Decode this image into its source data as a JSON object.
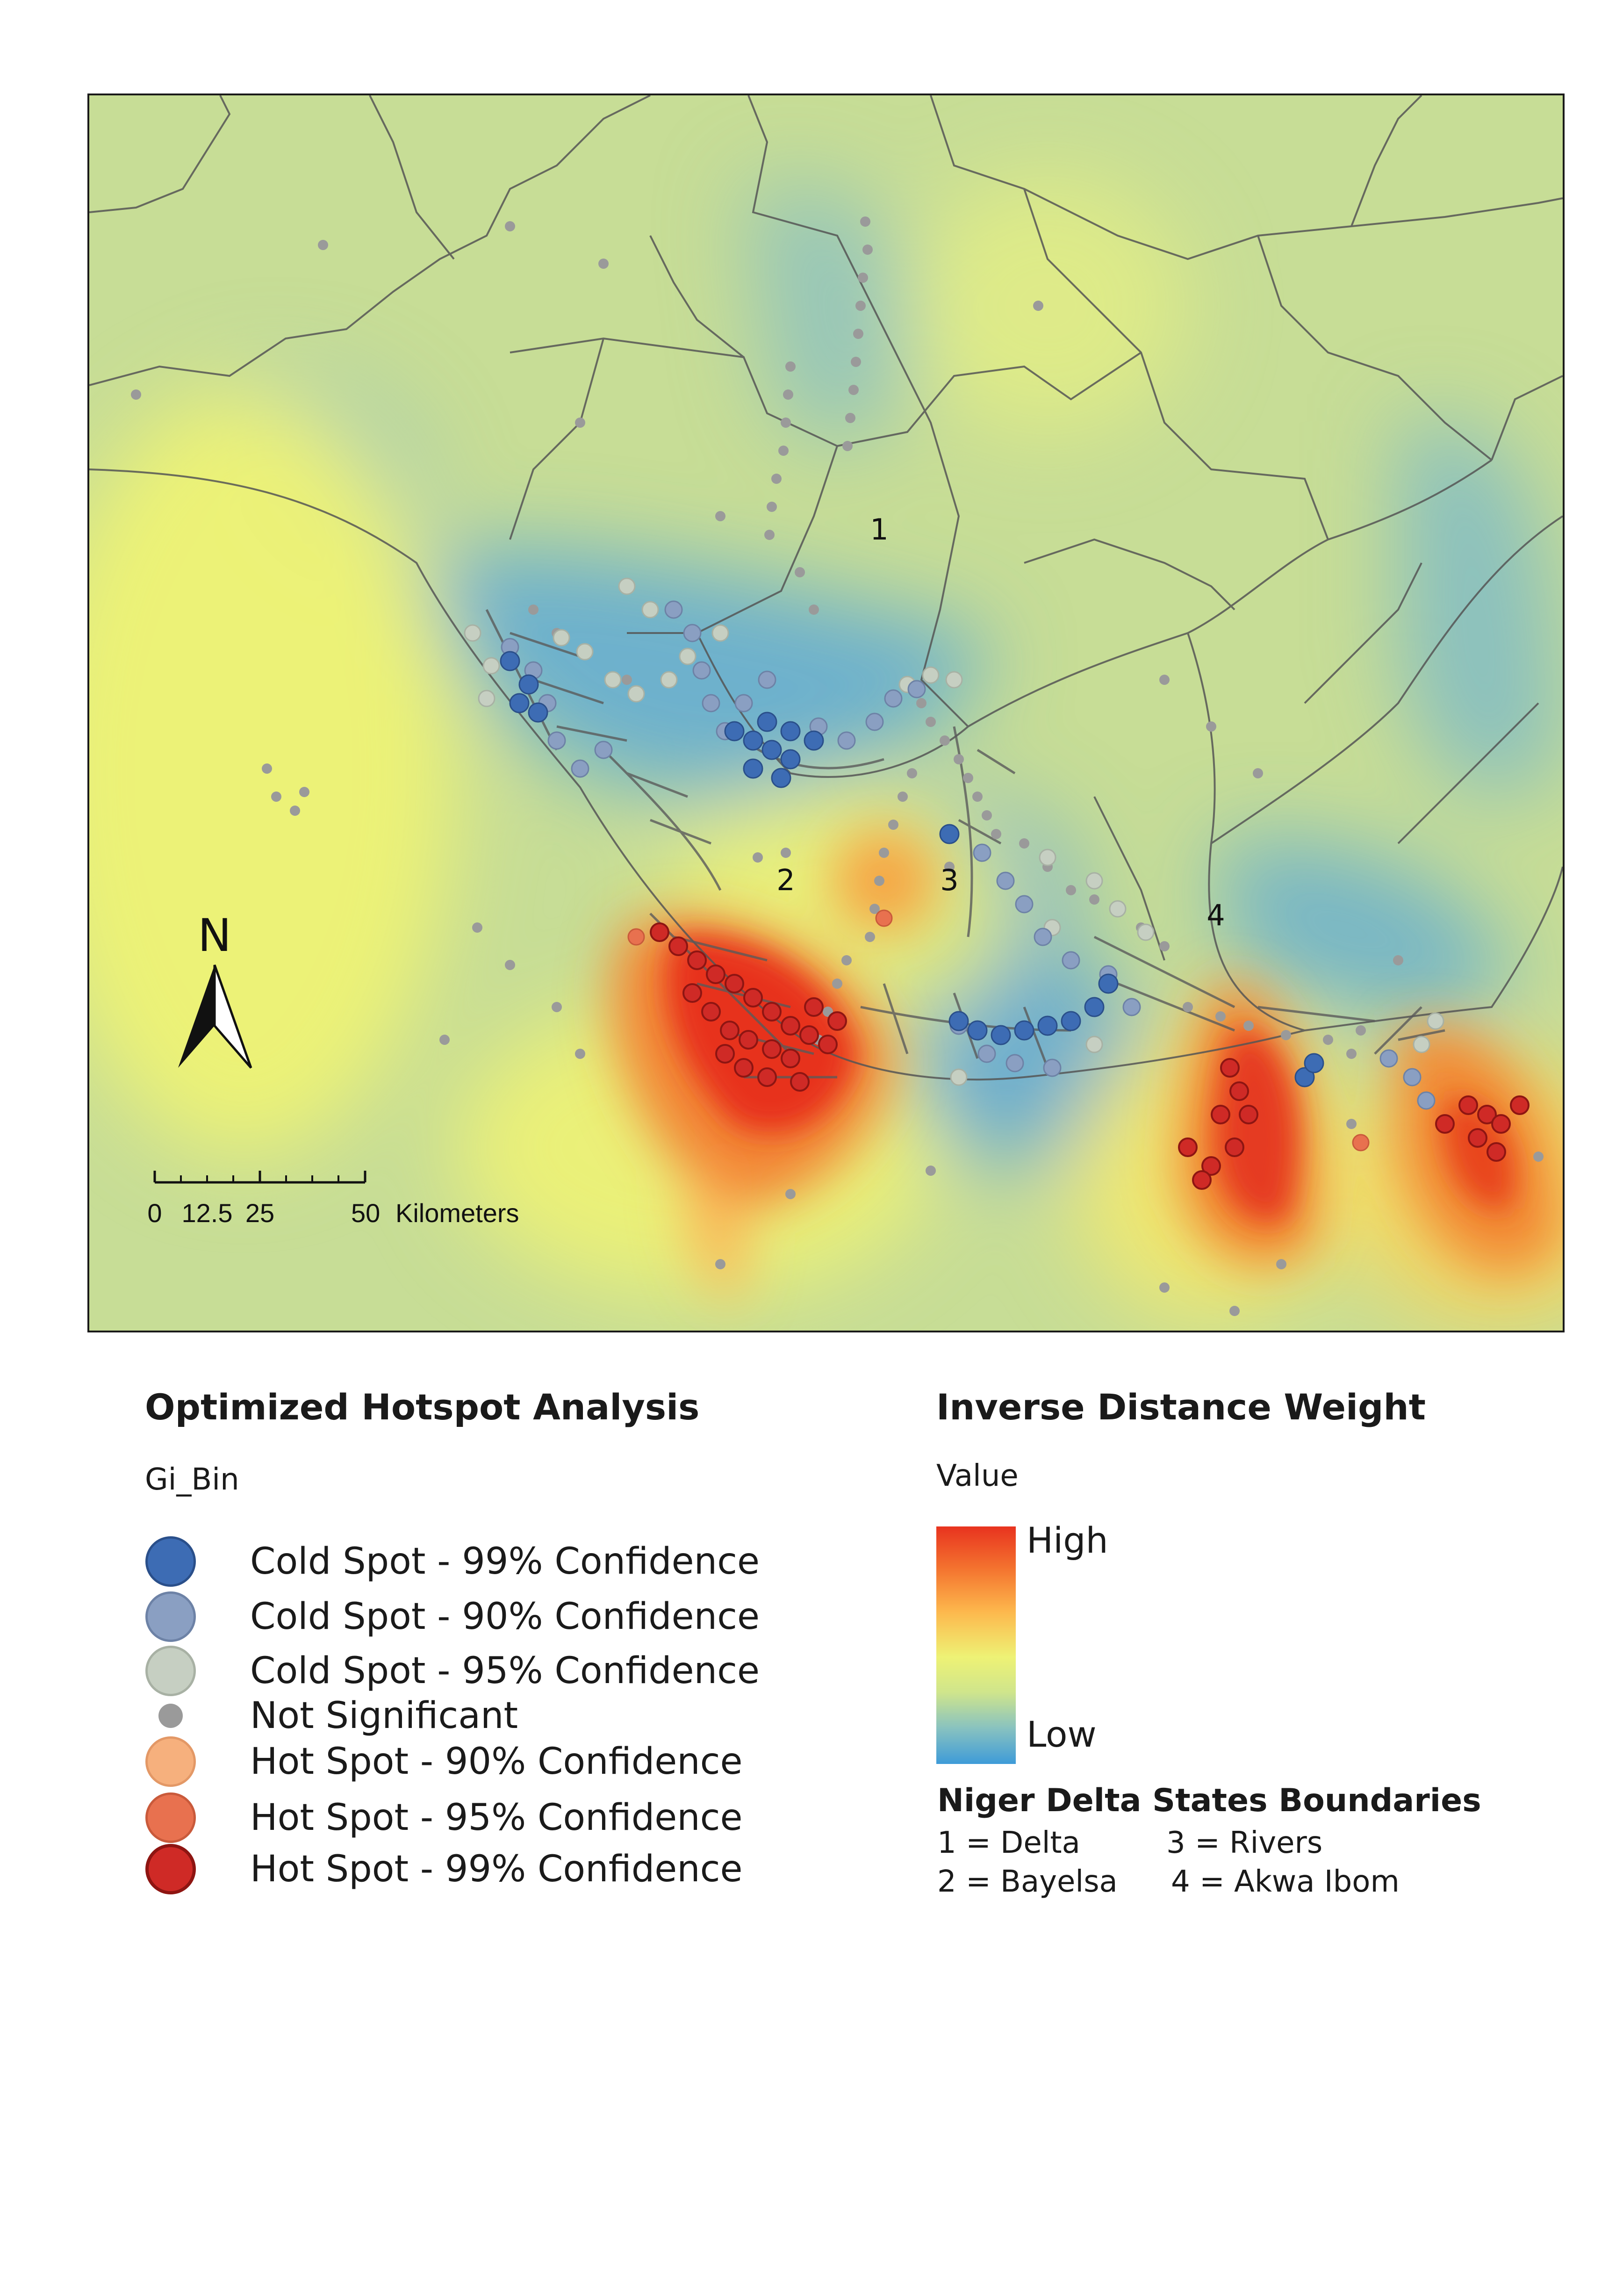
{
  "map": {
    "state_labels": [
      {
        "key": "delta",
        "text": "1"
      },
      {
        "key": "bayelsa",
        "text": "2"
      },
      {
        "key": "rivers",
        "text": "3"
      },
      {
        "key": "akwa_ibom",
        "text": "4"
      }
    ],
    "north_arrow": "N",
    "scale_bar": {
      "ticks": [
        "0",
        "12.5",
        "25",
        "50"
      ],
      "unit": "Kilometers"
    }
  },
  "hotspot_legend": {
    "title": "Optimized Hotspot Analysis",
    "field": "Gi_Bin",
    "items": [
      {
        "label": "Cold Spot - 99% Confidence",
        "color": "#3d6cb4",
        "stroke": "#2a4f8a"
      },
      {
        "label": "Cold Spot - 90% Confidence",
        "color": "#8a9fc2",
        "stroke": "#6d82a6"
      },
      {
        "label": "Cold Spot - 95% Confidence",
        "color": "#c6cfc2",
        "stroke": "#a8b1a4"
      },
      {
        "label": "Not Significant",
        "color": "#9a9a9a",
        "stroke": "#9a9a9a"
      },
      {
        "label": "Hot Spot - 90% Confidence",
        "color": "#f6b07d",
        "stroke": "#e39866"
      },
      {
        "label": "Hot Spot - 95% Confidence",
        "color": "#e8714f",
        "stroke": "#c95a3b"
      },
      {
        "label": "Hot Spot - 99% Confidence",
        "color": "#cf2a26",
        "stroke": "#8e1512"
      }
    ]
  },
  "idw_legend": {
    "title": "Inverse Distance Weight",
    "value_label": "Value",
    "high_label": "High",
    "low_label": "Low",
    "ramp_colors": [
      "#e8331f",
      "#f4742f",
      "#fdb84d",
      "#eef275",
      "#cfe58c",
      "#88c2c0",
      "#3e9bd8"
    ]
  },
  "states_legend": {
    "title": "Niger Delta States Boundaries",
    "items": [
      "1 = Delta",
      "3 = Rivers",
      "2 = Bayelsa",
      "4 = Akwa Ibom"
    ]
  }
}
